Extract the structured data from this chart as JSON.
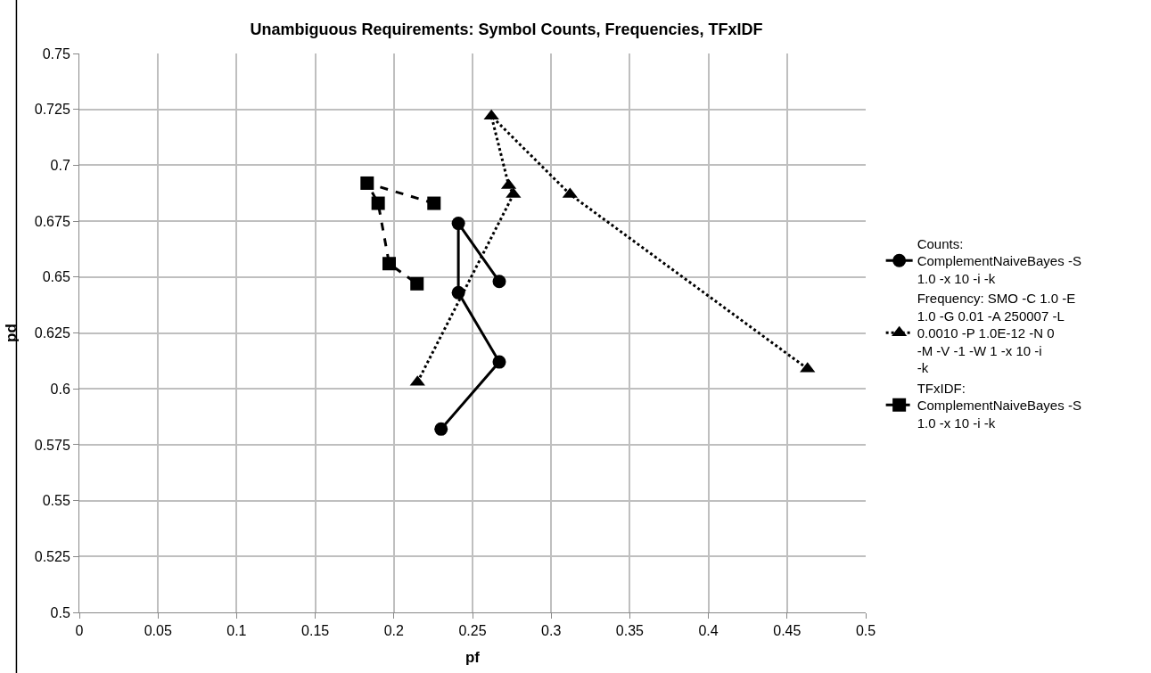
{
  "chart_data": {
    "type": "line",
    "title": "Unambiguous Requirements: Symbol Counts, Frequencies, TFxIDF",
    "xlabel": "pf",
    "ylabel": "pd",
    "xlim": [
      0,
      0.5
    ],
    "xticks": [
      0,
      0.05,
      0.1,
      0.15,
      0.2,
      0.25,
      0.3,
      0.35,
      0.4,
      0.45,
      0.5
    ],
    "ylim": [
      0.5,
      0.75
    ],
    "yticks": [
      0.5,
      0.525,
      0.55,
      0.575,
      0.6,
      0.625,
      0.65,
      0.675,
      0.7,
      0.725,
      0.75
    ],
    "grid": true,
    "legend": "right",
    "series": [
      {
        "name": "Counts: ComplementNaiveBayes -S 1.0 -x 10 -i -k",
        "color": "#000000",
        "marker": "circle",
        "line_style": "solid",
        "x": [
          0.23,
          0.267,
          0.241,
          0.241,
          0.267
        ],
        "values": [
          0.582,
          0.612,
          0.643,
          0.674,
          0.648
        ]
      },
      {
        "name": "Frequency: SMO -C 1.0 -E 1.0 -G 0.01 -A 250007 -L 0.0010 -P 1.0E-12 -N 0 -M -V -1 -W 1 -x 10 -i -k",
        "color": "#000000",
        "marker": "triangle",
        "line_style": "dotted",
        "x": [
          0.215,
          0.276,
          0.273,
          0.262,
          0.312,
          0.463
        ],
        "values": [
          0.603,
          0.687,
          0.691,
          0.722,
          0.687,
          0.609
        ]
      },
      {
        "name": "TFxIDF: ComplementNaiveBayes -S 1.0 -x 10 -i -k",
        "color": "#000000",
        "marker": "square",
        "line_style": "dashed",
        "x": [
          0.2255,
          0.183,
          0.19,
          0.197,
          0.2147
        ],
        "values": [
          0.683,
          0.692,
          0.683,
          0.656,
          0.647
        ]
      }
    ]
  }
}
